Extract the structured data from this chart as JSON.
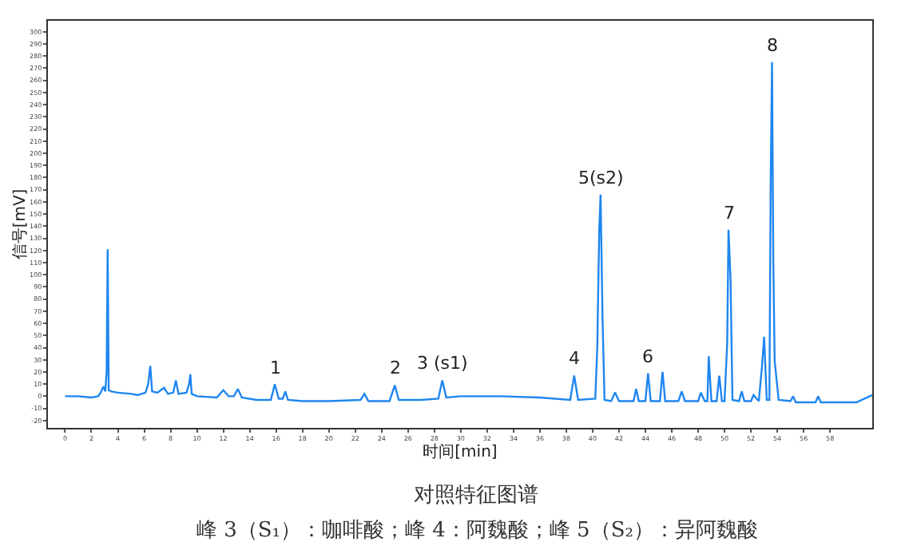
{
  "chart_data": {
    "type": "line",
    "xlabel": "时间[min]",
    "ylabel": "信号[mV]",
    "xlim": [
      -1.3,
      61.2
    ],
    "ylim": [
      -26,
      309
    ],
    "xticks": [
      0,
      2,
      4,
      6,
      8,
      10,
      12,
      14,
      16,
      18,
      20,
      22,
      24,
      26,
      28,
      30,
      32,
      34,
      36,
      38,
      40,
      42,
      44,
      46,
      48,
      50,
      52,
      54,
      56,
      58
    ],
    "yticks": [
      -20,
      -10,
      0,
      10,
      20,
      30,
      40,
      50,
      60,
      70,
      80,
      90,
      100,
      110,
      120,
      130,
      140,
      150,
      160,
      170,
      180,
      190,
      200,
      210,
      220,
      230,
      240,
      250,
      260,
      270,
      280,
      290,
      300
    ],
    "grid": false,
    "marker": "none",
    "line_style": "solid",
    "series": [
      {
        "color": "#1f86f0",
        "x": [
          0,
          1,
          2,
          2.5,
          2.7,
          2.9,
          3.05,
          3.15,
          3.23,
          3.31,
          3.5,
          4,
          5,
          5.5,
          6.1,
          6.3,
          6.46,
          6.6,
          7,
          7.5,
          7.8,
          8.2,
          8.4,
          8.6,
          9.2,
          9.4,
          9.5,
          9.6,
          10,
          11.5,
          12,
          12.4,
          12.8,
          13.1,
          13.4,
          14.5,
          15.6,
          15.9,
          16.2,
          16.5,
          16.7,
          16.9,
          18,
          20,
          22.4,
          22.7,
          23,
          24.6,
          25,
          25.3,
          27,
          28.3,
          28.6,
          28.9,
          30,
          33,
          36,
          38.3,
          38.6,
          38.9,
          40.2,
          40.35,
          40.5,
          40.6,
          40.75,
          40.9,
          41.4,
          41.7,
          42,
          43.1,
          43.3,
          43.5,
          44,
          44.2,
          44.4,
          45.1,
          45.3,
          45.5,
          46.5,
          46.75,
          47,
          48,
          48.2,
          48.5,
          48.7,
          48.8,
          49,
          49.4,
          49.6,
          49.8,
          50,
          50.2,
          50.3,
          50.45,
          50.6,
          51.1,
          51.3,
          51.5,
          52,
          52.2,
          52.6,
          52.85,
          53,
          53.2,
          53.4,
          53.5,
          53.6,
          53.7,
          53.8,
          54.1,
          55,
          55.2,
          55.4,
          56.9,
          57.1,
          57.3,
          60,
          61.2
        ],
        "values": [
          0,
          0,
          -1,
          0,
          3,
          8,
          4,
          20,
          121,
          5,
          4,
          3,
          2,
          1,
          3,
          10,
          25,
          4,
          3,
          7,
          2,
          3,
          13,
          2,
          3,
          10,
          18,
          2,
          0,
          -1,
          5,
          0,
          0,
          6,
          -1,
          -3,
          -3,
          10,
          -2,
          -2,
          4,
          -3,
          -4,
          -4,
          -3,
          2,
          -4,
          -4,
          9,
          -3,
          -3,
          -2,
          13,
          -1,
          0,
          0,
          -1,
          -3,
          17,
          -3,
          -2,
          40,
          137,
          166,
          64,
          -3,
          -4,
          3,
          -4,
          -4,
          6,
          -4,
          -4,
          19,
          -4,
          -4,
          20,
          -4,
          -4,
          4,
          -4,
          -4,
          3,
          -4,
          -4,
          33,
          -4,
          -4,
          17,
          -4,
          -4,
          43,
          137,
          98,
          -3,
          -4,
          4,
          -4,
          -4,
          1,
          -4,
          26,
          49,
          -3,
          -3,
          178,
          275,
          108,
          29,
          -3,
          -4,
          0,
          -5,
          -5,
          0,
          -5,
          -5,
          1
        ]
      }
    ],
    "annotations": [
      {
        "text": "1",
        "x": 15.9,
        "y": 10
      },
      {
        "text": "2",
        "x": 25,
        "y": 9
      },
      {
        "text": "3 (s1)",
        "x": 28.6,
        "y": 13
      },
      {
        "text": "4",
        "x": 38.6,
        "y": 17
      },
      {
        "text": "5(s2)",
        "x": 40.6,
        "y": 166
      },
      {
        "text": "6",
        "x": 44.2,
        "y": 19
      },
      {
        "text": "7",
        "x": 50.3,
        "y": 137
      },
      {
        "text": "8",
        "x": 53.6,
        "y": 275
      },
      "对照特征图谱",
      "峰 3（S₁）：咖啡酸；峰 4：阿魏酸；峰 5（S₂）：异阿魏酸"
    ]
  }
}
